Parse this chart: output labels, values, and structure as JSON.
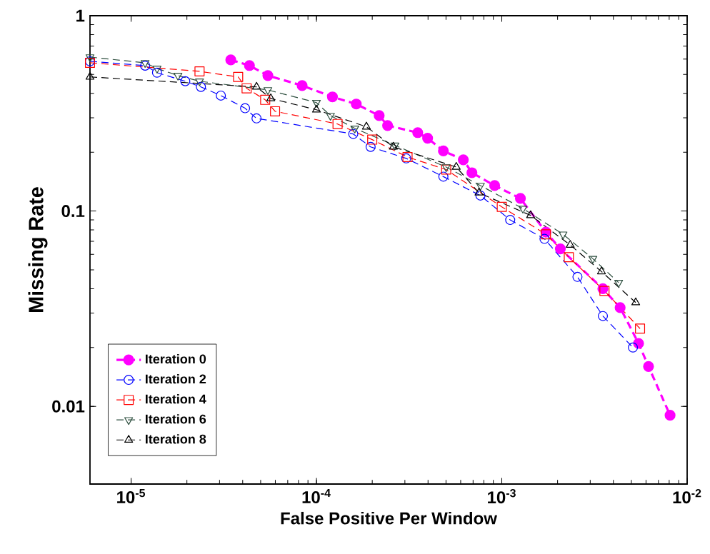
{
  "chart_data": {
    "type": "line",
    "xlabel": "False Positive Per Window",
    "ylabel": "Missing Rate",
    "log": "xy",
    "xlim": [
      6e-06,
      0.01
    ],
    "ylim": [
      0.004,
      1
    ],
    "xticks": [
      {
        "value": 1e-05,
        "label": "10$^{-5}$"
      },
      {
        "value": 0.0001,
        "label": "10$^{-4}$"
      },
      {
        "value": 0.001,
        "label": "10$^{-3}$"
      },
      {
        "value": 0.01,
        "label": "10$^{-2}$"
      }
    ],
    "yticks": [
      0.01,
      0.1,
      1
    ],
    "grid": false,
    "legend": "bottom left",
    "line_style": "dashed",
    "series": [
      {
        "name": "Iteration 0",
        "color": "#ff00ff",
        "marker": "filled circle",
        "x": [
          3.45e-05,
          4.35e-05,
          5.47e-05,
          8.37e-05,
          0.000122,
          0.000164,
          0.000218,
          0.000242,
          0.000352,
          0.000398,
          0.000484,
          0.00062,
          0.00069,
          0.000915,
          0.00126,
          0.00173,
          0.00207,
          0.00351,
          0.00435,
          0.00547,
          0.00619,
          0.00809
        ],
        "values": [
          0.594,
          0.556,
          0.494,
          0.439,
          0.384,
          0.353,
          0.308,
          0.274,
          0.252,
          0.236,
          0.203,
          0.183,
          0.157,
          0.135,
          0.116,
          0.078,
          0.064,
          0.04,
          0.032,
          0.021,
          0.016,
          0.009
        ]
      },
      {
        "name": "Iteration 2",
        "color": "#0000ff",
        "marker": "circle",
        "x": [
          6e-06,
          1.19e-05,
          1.38e-05,
          1.96e-05,
          2.38e-05,
          3.05e-05,
          4.12e-05,
          4.75e-05,
          0.000158,
          0.000196,
          0.000305,
          0.000484,
          0.000767,
          0.00111,
          0.0017,
          0.00256,
          0.00351,
          0.0051
        ],
        "values": [
          0.584,
          0.555,
          0.511,
          0.462,
          0.432,
          0.39,
          0.336,
          0.298,
          0.248,
          0.213,
          0.186,
          0.15,
          0.12,
          0.09,
          0.072,
          0.046,
          0.029,
          0.02
        ]
      },
      {
        "name": "Iteration 4",
        "color": "#ff0000",
        "marker": "square",
        "x": [
          6e-06,
          2.34e-05,
          3.78e-05,
          4.2e-05,
          5.29e-05,
          5.98e-05,
          0.00013,
          0.0002,
          0.00031,
          0.000501,
          0.001,
          0.00173,
          0.0023,
          0.00358,
          0.00557
        ],
        "values": [
          0.574,
          0.519,
          0.486,
          0.425,
          0.371,
          0.324,
          0.279,
          0.232,
          0.189,
          0.163,
          0.105,
          0.076,
          0.058,
          0.039,
          0.025
        ]
      },
      {
        "name": "Iteration 6",
        "color": "#2f5040",
        "marker": "triangle down",
        "x": [
          6e-06,
          1.19e-05,
          1.38e-05,
          1.79e-05,
          2.34e-05,
          5.47e-05,
          0.0001,
          0.000119,
          0.000161,
          0.000265,
          0.000501,
          0.000767,
          0.0013,
          0.00214,
          0.0031,
          0.00427
        ],
        "values": [
          0.614,
          0.574,
          0.537,
          0.494,
          0.462,
          0.417,
          0.359,
          0.308,
          0.265,
          0.217,
          0.168,
          0.135,
          0.103,
          0.076,
          0.057,
          0.043
        ]
      },
      {
        "name": "Iteration 8",
        "color": "#000000",
        "marker": "triangle",
        "x": [
          6e-06,
          4.75e-05,
          5.67e-05,
          0.0001,
          0.000186,
          0.00026,
          0.000568,
          0.000753,
          0.00143,
          0.00234,
          0.00345,
          0.00528
        ],
        "values": [
          0.486,
          0.432,
          0.377,
          0.33,
          0.27,
          0.213,
          0.168,
          0.124,
          0.095,
          0.067,
          0.049,
          0.034
        ]
      }
    ]
  }
}
